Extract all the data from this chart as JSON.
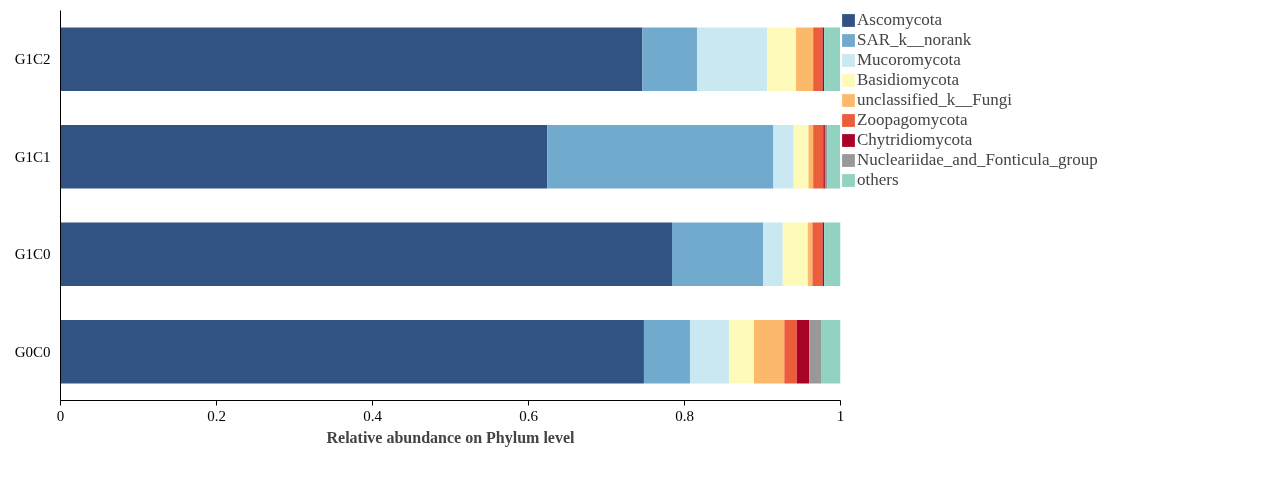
{
  "chart_data": {
    "type": "bar",
    "orientation": "horizontal",
    "stacked": true,
    "xlabel": "Relative abundance on Phylum level",
    "categories": [
      "G1C2",
      "G1C1",
      "G1C0",
      "G0C0"
    ],
    "xlim": [
      0,
      1
    ],
    "xticks": [
      0,
      0.2,
      0.4,
      0.6,
      0.8,
      1
    ],
    "grid": false,
    "legend": "top right",
    "series": [
      {
        "name": "Ascomycota",
        "color": "#325283",
        "values": [
          0.746,
          0.624,
          0.784,
          0.748
        ]
      },
      {
        "name": "SAR_k__norank",
        "color": "#72aace",
        "values": [
          0.07,
          0.29,
          0.117,
          0.059
        ]
      },
      {
        "name": "Mucoromycota",
        "color": "#cae8f2",
        "values": [
          0.09,
          0.026,
          0.025,
          0.05
        ]
      },
      {
        "name": "Basidiomycota",
        "color": "#fefbba",
        "values": [
          0.037,
          0.019,
          0.032,
          0.032
        ]
      },
      {
        "name": "unclassified_k__Fungi",
        "color": "#fdb96b",
        "values": [
          0.022,
          0.006,
          0.006,
          0.039
        ]
      },
      {
        "name": "Zoopagomycota",
        "color": "#ec5d3b",
        "values": [
          0.012,
          0.013,
          0.013,
          0.016
        ]
      },
      {
        "name": "Chytridiomycota",
        "color": "#a80326",
        "values": [
          0.002,
          0.002,
          0.002,
          0.016
        ]
      },
      {
        "name": "Nucleariidae_and_Fonticula_group",
        "color": "#999999",
        "values": [
          null,
          0.003,
          null,
          0.015
        ]
      },
      {
        "name": "others",
        "color": "#91d2c0",
        "values": [
          0.021,
          0.017,
          0.022,
          0.025
        ]
      }
    ]
  }
}
